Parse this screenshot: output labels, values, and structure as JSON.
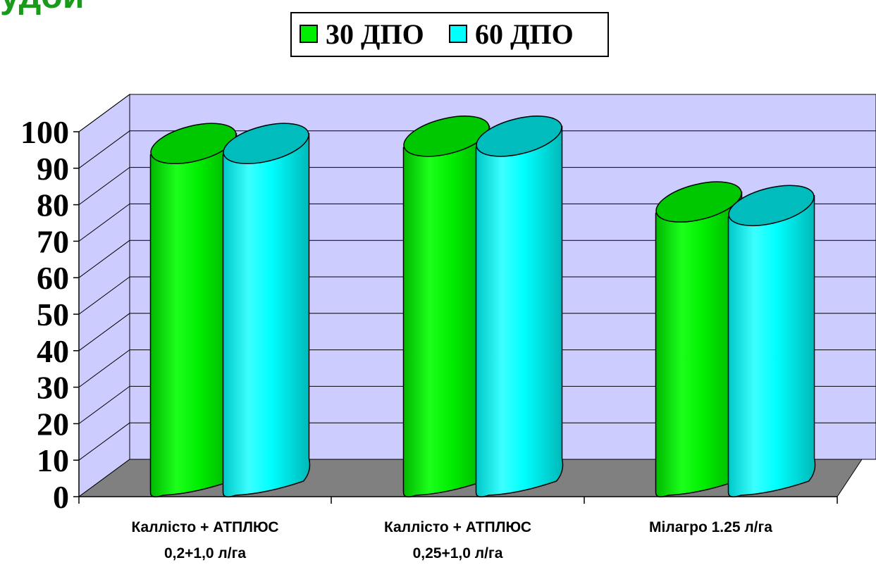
{
  "page": {
    "title_fragment": "удой"
  },
  "colors": {
    "series1": "#00ee00",
    "series2": "#00ffff",
    "wall": "#ccccff",
    "floor": "#808080"
  },
  "chart_data": {
    "type": "bar",
    "title": "",
    "xlabel": "",
    "ylabel": "",
    "categories": [
      [
        "Каллісто + АТПЛЮС",
        "0,2+1,0 л/га"
      ],
      [
        "Каллісто + АТПЛЮС",
        "0,25+1,0 л/га"
      ],
      [
        "Мілагро 1.25 л/га"
      ]
    ],
    "series": [
      {
        "name": "30 ДПО",
        "values": [
          96,
          98,
          80
        ]
      },
      {
        "name": "60 ДПО",
        "values": [
          96,
          98,
          79
        ]
      }
    ],
    "ylim": [
      0,
      100
    ],
    "yticks": [
      0,
      10,
      20,
      30,
      40,
      50,
      60,
      70,
      80,
      90,
      100
    ],
    "grid": true,
    "legend": "top-center",
    "style": "3d-cylinder"
  }
}
